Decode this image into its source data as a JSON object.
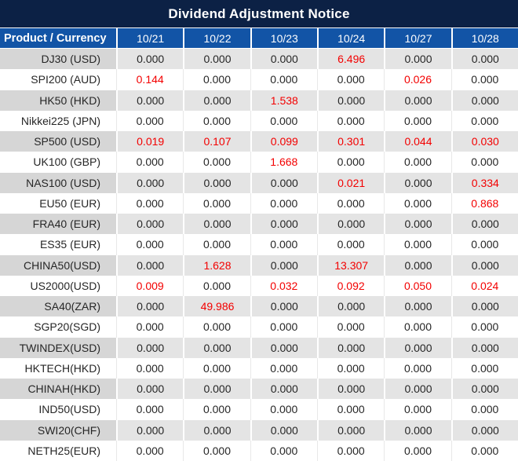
{
  "title": "Dividend Adjustment Notice",
  "table": {
    "product_header": "Product / Currency",
    "date_headers": [
      "10/21",
      "10/22",
      "10/23",
      "10/24",
      "10/27",
      "10/28"
    ],
    "rows": [
      {
        "product": "DJ30 (USD)",
        "values": [
          "0.000",
          "0.000",
          "0.000",
          "6.496",
          "0.000",
          "0.000"
        ],
        "red_indices": [
          3
        ]
      },
      {
        "product": "SPI200 (AUD)",
        "values": [
          "0.144",
          "0.000",
          "0.000",
          "0.000",
          "0.026",
          "0.000"
        ],
        "red_indices": [
          0,
          4
        ]
      },
      {
        "product": "HK50 (HKD)",
        "values": [
          "0.000",
          "0.000",
          "1.538",
          "0.000",
          "0.000",
          "0.000"
        ],
        "red_indices": [
          2
        ]
      },
      {
        "product": "Nikkei225 (JPN)",
        "values": [
          "0.000",
          "0.000",
          "0.000",
          "0.000",
          "0.000",
          "0.000"
        ],
        "red_indices": []
      },
      {
        "product": "SP500 (USD)",
        "values": [
          "0.019",
          "0.107",
          "0.099",
          "0.301",
          "0.044",
          "0.030"
        ],
        "red_indices": [
          0,
          1,
          2,
          3,
          4,
          5
        ]
      },
      {
        "product": "UK100 (GBP)",
        "values": [
          "0.000",
          "0.000",
          "1.668",
          "0.000",
          "0.000",
          "0.000"
        ],
        "red_indices": [
          2
        ]
      },
      {
        "product": "NAS100 (USD)",
        "values": [
          "0.000",
          "0.000",
          "0.000",
          "0.021",
          "0.000",
          "0.334"
        ],
        "red_indices": [
          3,
          5
        ]
      },
      {
        "product": "EU50 (EUR)",
        "values": [
          "0.000",
          "0.000",
          "0.000",
          "0.000",
          "0.000",
          "0.868"
        ],
        "red_indices": [
          5
        ]
      },
      {
        "product": "FRA40 (EUR)",
        "values": [
          "0.000",
          "0.000",
          "0.000",
          "0.000",
          "0.000",
          "0.000"
        ],
        "red_indices": []
      },
      {
        "product": "ES35 (EUR)",
        "values": [
          "0.000",
          "0.000",
          "0.000",
          "0.000",
          "0.000",
          "0.000"
        ],
        "red_indices": []
      },
      {
        "product": "CHINA50(USD)",
        "values": [
          "0.000",
          "1.628",
          "0.000",
          "13.307",
          "0.000",
          "0.000"
        ],
        "red_indices": [
          1,
          3
        ]
      },
      {
        "product": "US2000(USD)",
        "values": [
          "0.009",
          "0.000",
          "0.032",
          "0.092",
          "0.050",
          "0.024"
        ],
        "red_indices": [
          0,
          2,
          3,
          4,
          5
        ]
      },
      {
        "product": "SA40(ZAR)",
        "values": [
          "0.000",
          "49.986",
          "0.000",
          "0.000",
          "0.000",
          "0.000"
        ],
        "red_indices": [
          1
        ]
      },
      {
        "product": "SGP20(SGD)",
        "values": [
          "0.000",
          "0.000",
          "0.000",
          "0.000",
          "0.000",
          "0.000"
        ],
        "red_indices": []
      },
      {
        "product": "TWINDEX(USD)",
        "values": [
          "0.000",
          "0.000",
          "0.000",
          "0.000",
          "0.000",
          "0.000"
        ],
        "red_indices": []
      },
      {
        "product": "HKTECH(HKD)",
        "values": [
          "0.000",
          "0.000",
          "0.000",
          "0.000",
          "0.000",
          "0.000"
        ],
        "red_indices": []
      },
      {
        "product": "CHINAH(HKD)",
        "values": [
          "0.000",
          "0.000",
          "0.000",
          "0.000",
          "0.000",
          "0.000"
        ],
        "red_indices": []
      },
      {
        "product": "IND50(USD)",
        "values": [
          "0.000",
          "0.000",
          "0.000",
          "0.000",
          "0.000",
          "0.000"
        ],
        "red_indices": []
      },
      {
        "product": "SWI20(CHF)",
        "values": [
          "0.000",
          "0.000",
          "0.000",
          "0.000",
          "0.000",
          "0.000"
        ],
        "red_indices": []
      },
      {
        "product": "NETH25(EUR)",
        "values": [
          "0.000",
          "0.000",
          "0.000",
          "0.000",
          "0.000",
          "0.000"
        ],
        "red_indices": []
      }
    ]
  },
  "colors": {
    "title_bar": "#0c2145",
    "header_blue": "#1254a6",
    "gray_row_product": "#d6d6d6",
    "gray_row_value": "#e4e4e4",
    "value_text": "#262626",
    "red_text": "#f30000"
  }
}
